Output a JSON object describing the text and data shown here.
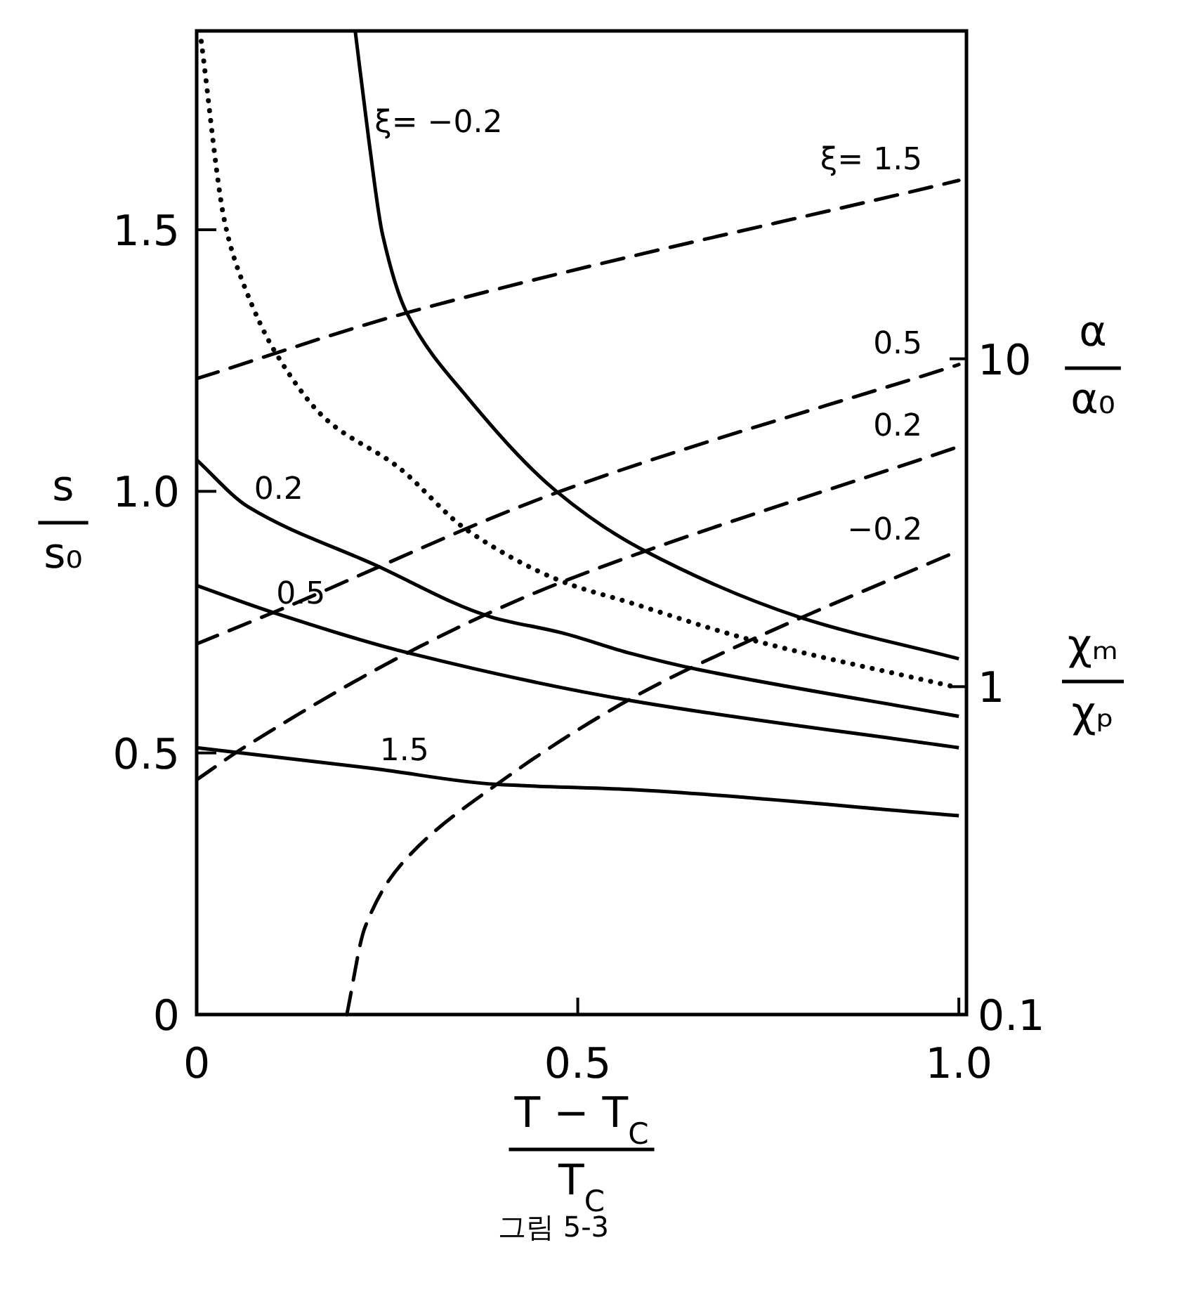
{
  "chart_data": {
    "type": "line",
    "xlabel": "T − T$_{C}$\nT$_{C}$",
    "ylabel": "s\ns₀",
    "y2label": "α\nα₀",
    "annotations": [
      "χₘ\nχₚ",
      "그림 5-3"
    ],
    "xlim": [
      0,
      1.01
    ],
    "xticks": [
      0,
      0.5,
      {
        "value": 1,
        "label": "1.0"
      }
    ],
    "ylim": [
      0,
      1.88
    ],
    "yticks": [
      0,
      0.5,
      {
        "value": 1,
        "label": "1.0"
      },
      1.5
    ],
    "log": "y2",
    "y2lim": [
      0.1,
      100
    ],
    "y2ticks": [
      0.1,
      1,
      10
    ],
    "grid": false,
    "series": [
      {
        "name": "ξ= −0.2",
        "color": "#000000",
        "line_style": "solid",
        "x": [
          0.208,
          0.226,
          0.244,
          0.276,
          0.355,
          0.472,
          0.583,
          0.79,
          1.0
        ],
        "values": [
          1.88,
          1.67,
          1.49,
          1.34,
          1.18,
          1.0,
          0.89,
          0.76,
          0.68
        ]
      },
      {
        "name": "0.2",
        "color": "#000000",
        "line_style": "solid",
        "x": [
          0,
          0.068,
          0.233,
          0.386,
          0.478,
          0.57,
          0.656,
          1.0
        ],
        "values": [
          1.06,
          0.97,
          0.86,
          0.76,
          0.73,
          0.69,
          0.66,
          0.57
        ]
      },
      {
        "name": "0.5",
        "color": "#000000",
        "line_style": "solid",
        "x": [
          0,
          0.097,
          0.281,
          0.57,
          1.0
        ],
        "values": [
          0.82,
          0.77,
          0.69,
          0.6,
          0.51
        ]
      },
      {
        "name": "1.5",
        "color": "#000000",
        "line_style": "solid",
        "x": [
          0,
          0.233,
          0.392,
          0.57,
          1.0
        ],
        "values": [
          0.51,
          0.47,
          0.44,
          0.43,
          0.38
        ]
      },
      {
        "color": "#000000",
        "line_style": "dotted",
        "axis": "y2",
        "x": [
          0.006,
          0.037,
          0.061,
          0.105,
          0.171,
          0.263,
          0.355,
          0.478,
          0.57,
          0.722,
          0.993
        ],
        "values": [
          93,
          26,
          17,
          10.3,
          6.5,
          4.7,
          3.0,
          2.1,
          1.8,
          1.4,
          1.0
        ]
      },
      {
        "name": "ξ= 1.5",
        "color": "#000000",
        "line_style": "dashed",
        "axis": "y2",
        "x": [
          0,
          0.28,
          1.0
        ],
        "values": [
          8.7,
          13.9,
          35
        ]
      },
      {
        "name": "0.5",
        "color": "#000000",
        "line_style": "dashed",
        "axis": "y2",
        "x": [
          0,
          0.105,
          0.478,
          1.0
        ],
        "values": [
          1.35,
          1.7,
          3.95,
          9.6
        ]
      },
      {
        "name": "0.2",
        "color": "#000000",
        "line_style": "dashed",
        "axis": "y2",
        "x": [
          0,
          0.061,
          0.294,
          0.478,
          1.0
        ],
        "values": [
          0.52,
          0.65,
          1.33,
          2.08,
          5.4
        ]
      },
      {
        "name": "−0.2",
        "color": "#000000",
        "line_style": "dashed",
        "axis": "y2",
        "x": [
          0.197,
          0.221,
          0.27,
          0.392,
          0.57,
          0.722,
          1.0
        ],
        "values": [
          0.1,
          0.185,
          0.29,
          0.5,
          0.92,
          1.37,
          2.6
        ]
      }
    ]
  }
}
